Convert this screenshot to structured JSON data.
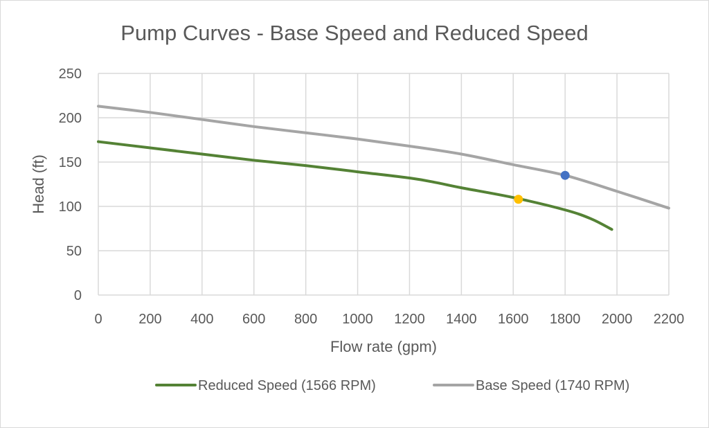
{
  "chart_data": {
    "type": "line",
    "title": "Pump Curves - Base Speed and Reduced Speed",
    "xlabel": "Flow rate (gpm)",
    "ylabel": "Head (ft)",
    "xlim": [
      0,
      2200
    ],
    "ylim": [
      0,
      250
    ],
    "xticks": [
      0,
      200,
      400,
      600,
      800,
      1000,
      1200,
      1400,
      1600,
      1800,
      2000,
      2200
    ],
    "yticks": [
      0,
      50,
      100,
      150,
      200,
      250
    ],
    "grid": true,
    "legend_position": "bottom",
    "series": [
      {
        "name": "Reduced Speed (1566 RPM)",
        "color": "#548235",
        "x": [
          0,
          200,
          400,
          600,
          800,
          1000,
          1200,
          1300,
          1400,
          1600,
          1800,
          1900,
          1980
        ],
        "y": [
          173,
          166,
          159,
          152,
          146,
          139,
          132,
          127,
          121,
          110,
          96,
          86,
          74
        ]
      },
      {
        "name": "Base Speed (1740 RPM)",
        "color": "#a5a5a5",
        "x": [
          0,
          200,
          400,
          600,
          800,
          1000,
          1200,
          1400,
          1600,
          1800,
          2000,
          2200
        ],
        "y": [
          213,
          206,
          198,
          190,
          183,
          176,
          168,
          159,
          147,
          135,
          117,
          98
        ]
      }
    ],
    "points": [
      {
        "name": "base-speed-operating-point",
        "x": 1800,
        "y": 135,
        "color": "#4472c4"
      },
      {
        "name": "reduced-speed-operating-point",
        "x": 1620,
        "y": 108,
        "color": "#ffc000"
      }
    ]
  }
}
